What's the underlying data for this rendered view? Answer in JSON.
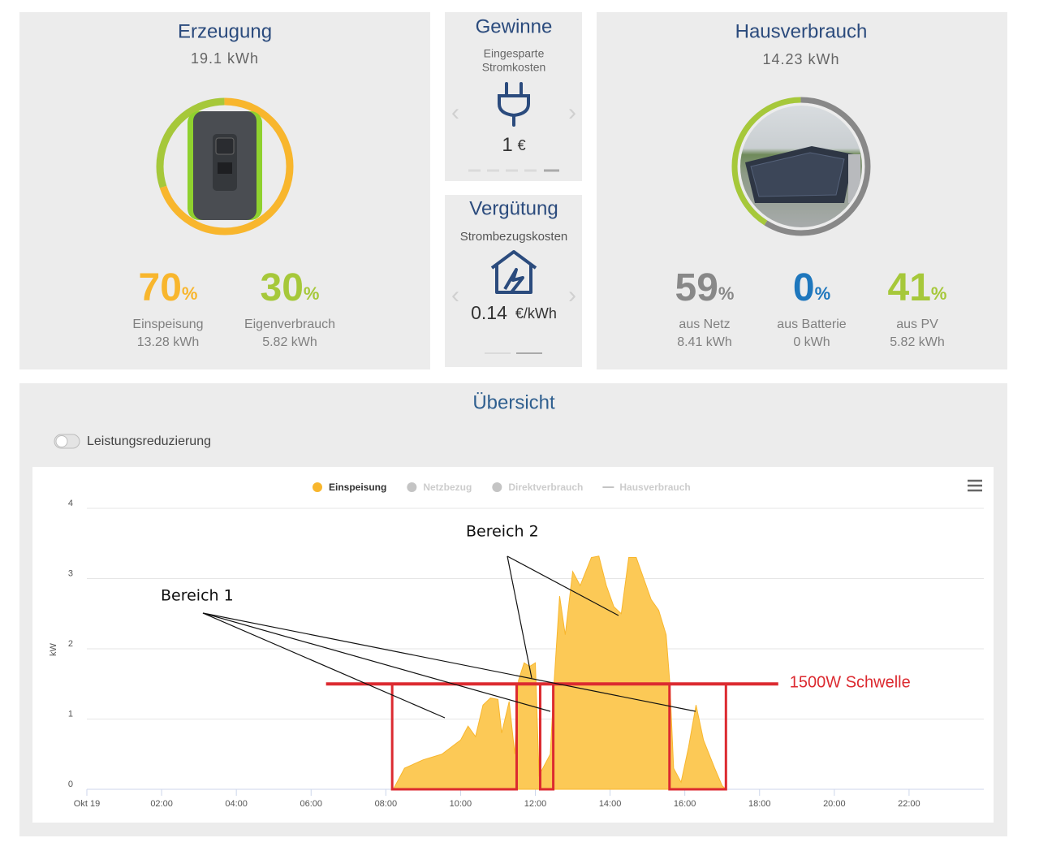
{
  "erzeugung": {
    "title": "Erzeugung",
    "total": "19.1 kWh",
    "stats": [
      {
        "value": 70,
        "unit": "%",
        "label": "Einspeisung",
        "amount": "13.28 kWh",
        "color": "#f8b62d"
      },
      {
        "value": 30,
        "unit": "%",
        "label": "Eigenverbrauch",
        "amount": "5.82 kWh",
        "color": "#a6c83a"
      }
    ]
  },
  "gewinne": {
    "title": "Gewinne",
    "subtitle": [
      "Eingesparte",
      "Stromkosten"
    ],
    "value": 1,
    "unit": "€"
  },
  "verguetung": {
    "title": "Vergütung",
    "subtitle": "Strombezugskosten",
    "value": 0.14,
    "unit": "€/kWh"
  },
  "hausverbrauch": {
    "title": "Hausverbrauch",
    "total": "14.23 kWh",
    "stats": [
      {
        "value": 59,
        "unit": "%",
        "label": "aus Netz",
        "amount": "8.41 kWh",
        "color": "#888888"
      },
      {
        "value": 0,
        "unit": "%",
        "label": "aus Batterie",
        "amount": "0 kWh",
        "color": "#1e77bd"
      },
      {
        "value": 41,
        "unit": "%",
        "label": "aus PV",
        "amount": "5.82 kWh",
        "color": "#a6c83a"
      }
    ]
  },
  "uebersicht": {
    "title": "Übersicht",
    "toggle": "Leistungsreduzierung"
  },
  "chart_data": {
    "type": "area",
    "ylabel": "kW",
    "x": [
      8.2,
      8.5,
      9.0,
      9.5,
      10.0,
      10.2,
      10.4,
      10.6,
      10.8,
      11.0,
      11.1,
      11.3,
      11.45,
      11.55,
      11.7,
      11.85,
      12.0,
      12.1,
      12.2,
      12.4,
      12.5,
      12.65,
      12.8,
      13.0,
      13.2,
      13.5,
      13.7,
      13.9,
      14.1,
      14.3,
      14.5,
      14.7,
      14.9,
      15.1,
      15.3,
      15.5,
      15.6,
      15.7,
      15.9,
      16.1,
      16.3,
      16.5,
      16.8,
      17.0,
      17.1
    ],
    "series": [
      {
        "name": "Einspeisung",
        "color": "#f8b62d",
        "fill": "#fcc956",
        "visible": true,
        "values": [
          0,
          0.3,
          0.42,
          0.5,
          0.7,
          0.9,
          0.75,
          1.2,
          1.3,
          1.28,
          0.8,
          1.25,
          0.5,
          1.55,
          1.8,
          1.75,
          1.8,
          0.2,
          0.3,
          0.5,
          1.5,
          2.75,
          2.2,
          3.1,
          2.9,
          3.3,
          3.32,
          2.9,
          2.6,
          2.5,
          3.3,
          3.3,
          3.0,
          2.7,
          2.55,
          2.2,
          1.5,
          0.3,
          0.1,
          0.6,
          1.2,
          0.7,
          0.3,
          0.05,
          0
        ]
      },
      {
        "name": "Netzbezug",
        "color": "#c4c4c4",
        "visible": false
      },
      {
        "name": "Direktverbrauch",
        "color": "#c4c4c4",
        "visible": false
      },
      {
        "name": "Hausverbrauch",
        "color": "#c4c4c4",
        "visible": false,
        "style": "line"
      }
    ],
    "xlim": [
      0,
      24
    ],
    "xticks": [
      {
        "value": 0,
        "label": "Okt 19"
      },
      {
        "value": 2,
        "label": "02:00"
      },
      {
        "value": 4,
        "label": "04:00"
      },
      {
        "value": 6,
        "label": "06:00"
      },
      {
        "value": 8,
        "label": "08:00"
      },
      {
        "value": 10,
        "label": "10:00"
      },
      {
        "value": 12,
        "label": "12:00"
      },
      {
        "value": 14,
        "label": "14:00"
      },
      {
        "value": 16,
        "label": "16:00"
      },
      {
        "value": 18,
        "label": "18:00"
      },
      {
        "value": 20,
        "label": "20:00"
      },
      {
        "value": 22,
        "label": "22:00"
      }
    ],
    "ylim": [
      0,
      4
    ],
    "yticks": [
      0,
      1,
      2,
      3,
      4
    ],
    "grid": true,
    "legend": "top",
    "threshold": {
      "value": 1.5,
      "label": "1500W Schwelle",
      "color": "#dc2a30",
      "xrange": [
        6.4,
        18.5
      ]
    },
    "regions": [
      [
        8.17,
        11.5
      ],
      [
        12.13,
        12.48
      ],
      [
        15.59,
        17.1
      ]
    ],
    "annotations": [
      {
        "text": "Bereich 1"
      },
      {
        "text": "Bereich 2"
      }
    ]
  }
}
